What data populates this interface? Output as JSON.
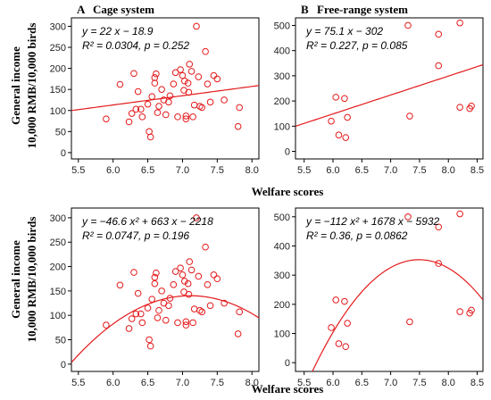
{
  "figure": {
    "ylabel_line1": "General income",
    "ylabel_line2": "10,000 RMB/10,000 birds",
    "xlabel": "Welfare scores"
  },
  "colors": {
    "marker": "#e41a1c",
    "fit": "#e41a1c",
    "axis": "#000000"
  },
  "chart_data": [
    {
      "type": "scatter",
      "letter": "A",
      "title": "Cage system",
      "fit": "linear",
      "fit_coef": [
        22,
        -18.9
      ],
      "ann": [
        "y = 22 x − 18.9",
        "R² = 0.0304,  p = 0.252"
      ],
      "xlim": [
        5.4,
        8.1
      ],
      "ylim": [
        -15,
        320
      ],
      "xticks": [
        "5.5",
        "6.0",
        "6.5",
        "7.0",
        "7.5",
        "8.0"
      ],
      "yticks": [
        "0",
        "50",
        "100",
        "150",
        "200",
        "250",
        "300"
      ],
      "points": [
        [
          5.9,
          80
        ],
        [
          6.1,
          162
        ],
        [
          6.23,
          73
        ],
        [
          6.27,
          93
        ],
        [
          6.3,
          188
        ],
        [
          6.33,
          103
        ],
        [
          6.36,
          145
        ],
        [
          6.4,
          103
        ],
        [
          6.42,
          85
        ],
        [
          6.5,
          115
        ],
        [
          6.52,
          50
        ],
        [
          6.54,
          37
        ],
        [
          6.56,
          133
        ],
        [
          6.6,
          178
        ],
        [
          6.6,
          165
        ],
        [
          6.62,
          187
        ],
        [
          6.64,
          95
        ],
        [
          6.66,
          110
        ],
        [
          6.7,
          150
        ],
        [
          6.73,
          125
        ],
        [
          6.76,
          90
        ],
        [
          6.8,
          120
        ],
        [
          6.82,
          135
        ],
        [
          6.87,
          163
        ],
        [
          6.9,
          190
        ],
        [
          6.93,
          85
        ],
        [
          6.97,
          197
        ],
        [
          7.0,
          183
        ],
        [
          7.02,
          148
        ],
        [
          7.03,
          170
        ],
        [
          7.05,
          80
        ],
        [
          7.05,
          87
        ],
        [
          7.08,
          165
        ],
        [
          7.09,
          143
        ],
        [
          7.1,
          210
        ],
        [
          7.13,
          193
        ],
        [
          7.15,
          85
        ],
        [
          7.17,
          113
        ],
        [
          7.2,
          300
        ],
        [
          7.23,
          180
        ],
        [
          7.25,
          110
        ],
        [
          7.28,
          107
        ],
        [
          7.33,
          240
        ],
        [
          7.36,
          163
        ],
        [
          7.4,
          120
        ],
        [
          7.45,
          183
        ],
        [
          7.5,
          175
        ],
        [
          7.6,
          125
        ],
        [
          7.8,
          62
        ],
        [
          7.82,
          107
        ]
      ]
    },
    {
      "type": "scatter",
      "letter": "B",
      "title": "Free-range system",
      "fit": "linear",
      "fit_coef": [
        75.1,
        -302
      ],
      "ann": [
        "y = 75.1 x − 302",
        "R² = 0.227,  p = 0.085"
      ],
      "xlim": [
        5.35,
        8.6
      ],
      "ylim": [
        -30,
        530
      ],
      "xticks": [
        "5.5",
        "6.0",
        "6.5",
        "7.0",
        "7.5",
        "8.0",
        "8.5"
      ],
      "yticks": [
        "0",
        "100",
        "200",
        "300",
        "400",
        "500"
      ],
      "points": [
        [
          5.97,
          120
        ],
        [
          6.05,
          215
        ],
        [
          6.1,
          65
        ],
        [
          6.2,
          210
        ],
        [
          6.22,
          55
        ],
        [
          6.25,
          135
        ],
        [
          7.3,
          500
        ],
        [
          7.33,
          140
        ],
        [
          7.83,
          465
        ],
        [
          7.83,
          340
        ],
        [
          8.2,
          510
        ],
        [
          8.2,
          175
        ],
        [
          8.37,
          170
        ],
        [
          8.4,
          180
        ]
      ]
    },
    {
      "type": "scatter",
      "letter": "",
      "title": "",
      "fit": "quadratic",
      "fit_coef": [
        -46.6,
        663,
        -2218
      ],
      "ann": [
        "y = −46.6 x² + 663 x − 2218",
        "R² = 0.0747,  p = 0.196"
      ],
      "xlim": [
        5.4,
        8.1
      ],
      "ylim": [
        -15,
        320
      ],
      "xticks": [
        "5.5",
        "6.0",
        "6.5",
        "7.0",
        "7.5",
        "8.0"
      ],
      "yticks": [
        "0",
        "50",
        "100",
        "150",
        "200",
        "250",
        "300"
      ],
      "points": [
        [
          5.9,
          80
        ],
        [
          6.1,
          162
        ],
        [
          6.23,
          73
        ],
        [
          6.27,
          93
        ],
        [
          6.3,
          188
        ],
        [
          6.33,
          103
        ],
        [
          6.36,
          145
        ],
        [
          6.4,
          103
        ],
        [
          6.42,
          85
        ],
        [
          6.5,
          115
        ],
        [
          6.52,
          50
        ],
        [
          6.54,
          37
        ],
        [
          6.56,
          133
        ],
        [
          6.6,
          178
        ],
        [
          6.6,
          165
        ],
        [
          6.62,
          187
        ],
        [
          6.64,
          95
        ],
        [
          6.66,
          110
        ],
        [
          6.7,
          150
        ],
        [
          6.73,
          125
        ],
        [
          6.76,
          90
        ],
        [
          6.8,
          120
        ],
        [
          6.82,
          135
        ],
        [
          6.87,
          163
        ],
        [
          6.9,
          190
        ],
        [
          6.93,
          85
        ],
        [
          6.97,
          197
        ],
        [
          7.0,
          183
        ],
        [
          7.02,
          148
        ],
        [
          7.03,
          170
        ],
        [
          7.05,
          80
        ],
        [
          7.05,
          87
        ],
        [
          7.08,
          165
        ],
        [
          7.09,
          143
        ],
        [
          7.1,
          210
        ],
        [
          7.13,
          193
        ],
        [
          7.15,
          85
        ],
        [
          7.17,
          113
        ],
        [
          7.2,
          300
        ],
        [
          7.23,
          180
        ],
        [
          7.25,
          110
        ],
        [
          7.28,
          107
        ],
        [
          7.33,
          240
        ],
        [
          7.36,
          163
        ],
        [
          7.4,
          120
        ],
        [
          7.45,
          183
        ],
        [
          7.5,
          175
        ],
        [
          7.6,
          125
        ],
        [
          7.8,
          62
        ],
        [
          7.82,
          107
        ]
      ]
    },
    {
      "type": "scatter",
      "letter": "",
      "title": "",
      "fit": "quadratic",
      "fit_coef": [
        -112,
        1678,
        -5932
      ],
      "ann": [
        "y = −112 x² + 1678 x − 5932",
        "R² = 0.36,  p = 0.0862"
      ],
      "xlim": [
        5.35,
        8.6
      ],
      "ylim": [
        -30,
        530
      ],
      "xticks": [
        "5.5",
        "6.0",
        "6.5",
        "7.0",
        "7.5",
        "8.0",
        "8.5"
      ],
      "yticks": [
        "0",
        "100",
        "200",
        "300",
        "400",
        "500"
      ],
      "points": [
        [
          5.97,
          120
        ],
        [
          6.05,
          215
        ],
        [
          6.1,
          65
        ],
        [
          6.2,
          210
        ],
        [
          6.22,
          55
        ],
        [
          6.25,
          135
        ],
        [
          7.3,
          500
        ],
        [
          7.33,
          140
        ],
        [
          7.83,
          465
        ],
        [
          7.83,
          340
        ],
        [
          8.2,
          510
        ],
        [
          8.2,
          175
        ],
        [
          8.37,
          170
        ],
        [
          8.4,
          180
        ]
      ]
    }
  ]
}
